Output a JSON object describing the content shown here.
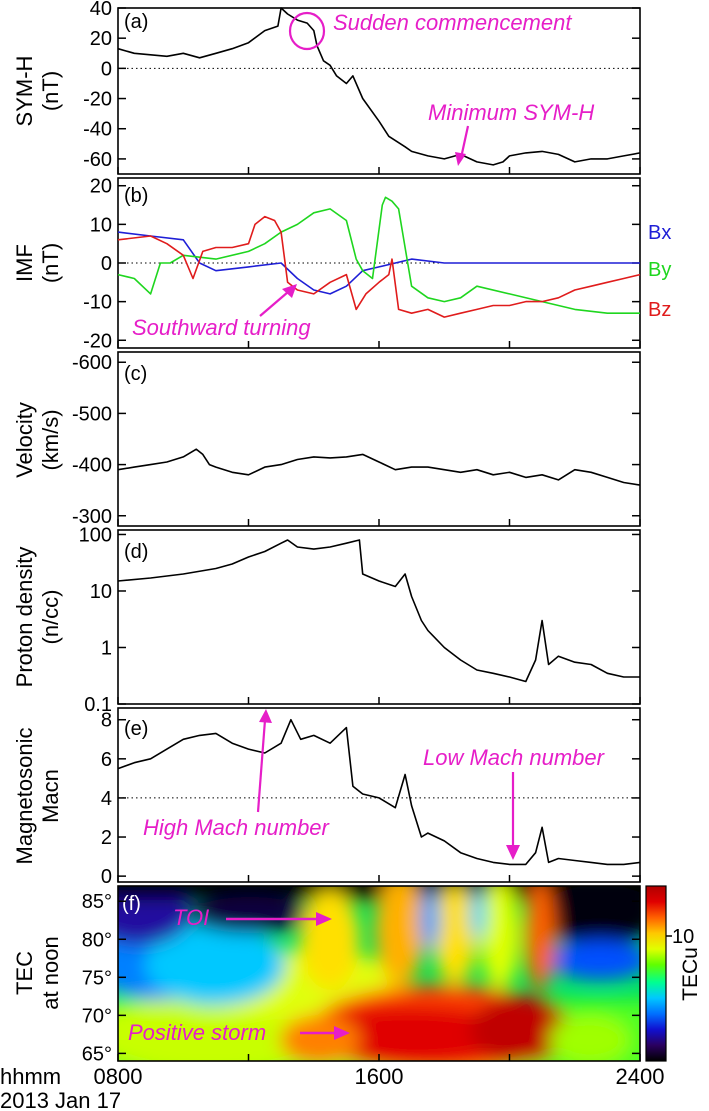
{
  "chart_data": [
    {
      "panel": "(a)",
      "type": "line",
      "ylabel": [
        "SYM-H",
        "(nT)"
      ],
      "ylim": [
        -70,
        40
      ],
      "yticks": [
        40,
        20,
        0,
        -20,
        -40,
        -60
      ],
      "xlim": [
        8,
        24
      ],
      "refline": 0,
      "series": [
        {
          "name": "SYM-H",
          "color": "#000000",
          "x": [
            8,
            8.5,
            9,
            9.5,
            10,
            10.5,
            11,
            11.5,
            12,
            12.5,
            12.9,
            13,
            13.2,
            13.5,
            13.8,
            14.0,
            14.1,
            14.3,
            14.5,
            14.7,
            15,
            15.2,
            15.5,
            16,
            16.3,
            16.8,
            17,
            17.5,
            18,
            18.5,
            19,
            19.5,
            19.8,
            20,
            20.5,
            21,
            21.5,
            22,
            22.5,
            23,
            23.5,
            24
          ],
          "y": [
            13,
            10,
            9,
            8,
            10,
            7,
            10,
            13,
            17,
            25,
            28,
            40,
            36,
            32,
            30,
            25,
            15,
            5,
            2,
            -5,
            -10,
            -5,
            -20,
            -35,
            -45,
            -52,
            -55,
            -58,
            -60,
            -57,
            -62,
            -64,
            -62,
            -58,
            -56,
            -55,
            -57,
            -62,
            -60,
            -60,
            -58,
            -56
          ]
        }
      ],
      "annotations": [
        {
          "text": "Sudden commencement"
        },
        {
          "text": "Minimum SYM-H"
        }
      ]
    },
    {
      "panel": "(b)",
      "type": "line",
      "ylabel": [
        "IMF",
        "(nT)"
      ],
      "ylim": [
        -22,
        22
      ],
      "yticks": [
        20,
        10,
        0,
        -10,
        -20
      ],
      "xlim": [
        8,
        24
      ],
      "refline": 0,
      "series": [
        {
          "name": "Bx",
          "color": "#1f1fd6",
          "x": [
            8,
            9,
            10,
            10.5,
            11,
            12,
            13,
            13.5,
            14,
            14.5,
            15,
            15.5,
            16,
            17,
            18,
            19,
            20,
            21,
            22,
            23,
            24
          ],
          "y": [
            8,
            7,
            6,
            0,
            -2,
            -1,
            0,
            -4,
            -7,
            -8,
            -6,
            -2,
            -1,
            1,
            0,
            0,
            0,
            0,
            0,
            0,
            0
          ]
        },
        {
          "name": "By",
          "color": "#1fd61f",
          "x": [
            8,
            8.5,
            9,
            9.3,
            9.6,
            10,
            11,
            12,
            12.5,
            13,
            13.5,
            14,
            14.5,
            15,
            15.3,
            15.5,
            15.8,
            16.1,
            16.2,
            16.4,
            16.6,
            17,
            17.5,
            18,
            18.5,
            19,
            20,
            21,
            22,
            23,
            24
          ],
          "y": [
            -3,
            -4,
            -8,
            0,
            0,
            2,
            1,
            3,
            5,
            8,
            10,
            13,
            14,
            11,
            1,
            -2,
            -4,
            15,
            17,
            16,
            14,
            -6,
            -9,
            -10,
            -9,
            -6,
            -8,
            -10,
            -12,
            -13,
            -13
          ]
        },
        {
          "name": "Bz",
          "color": "#e01c1c",
          "x": [
            8,
            9,
            9.5,
            10,
            10.3,
            10.6,
            11,
            11.5,
            12,
            12.2,
            12.5,
            12.8,
            13,
            13.2,
            13.5,
            14,
            14.5,
            15,
            15.3,
            15.6,
            16,
            16.3,
            16.4,
            16.6,
            17,
            17.5,
            18,
            18.5,
            19,
            19.5,
            20,
            20.5,
            21,
            21.5,
            22,
            22.5,
            23,
            23.5,
            24
          ],
          "y": [
            6,
            7,
            5,
            2,
            -4,
            3,
            4,
            4,
            5,
            10,
            12,
            11,
            8,
            -5,
            -7,
            -8,
            -5,
            -3,
            -12,
            -8,
            -5,
            -3,
            1,
            -12,
            -13,
            -12,
            -14,
            -13,
            -12,
            -11,
            -11,
            -10,
            -10,
            -9,
            -7,
            -6,
            -5,
            -4,
            -3
          ]
        }
      ],
      "legend": [
        "Bx",
        "By",
        "Bz"
      ],
      "annotations": [
        {
          "text": "Southward turning"
        }
      ]
    },
    {
      "panel": "(c)",
      "type": "line",
      "ylabel": [
        "Velocity",
        "(km/s)"
      ],
      "ylim": [
        -620,
        -280
      ],
      "yticks": [
        -600,
        -500,
        -400,
        -300
      ],
      "yinverted": true,
      "xlim": [
        8,
        24
      ],
      "series": [
        {
          "name": "Velocity",
          "color": "#000000",
          "x": [
            8,
            8.5,
            9,
            9.5,
            10,
            10.4,
            10.6,
            10.8,
            11,
            11.5,
            12,
            12.5,
            13,
            13.5,
            14,
            14.5,
            15,
            15.5,
            16,
            16.5,
            17,
            17.5,
            18,
            18.5,
            19,
            19.5,
            20,
            20.5,
            21,
            21.5,
            22,
            22.5,
            23,
            23.5,
            24
          ],
          "y": [
            -390,
            -395,
            -400,
            -405,
            -415,
            -430,
            -420,
            -400,
            -395,
            -385,
            -380,
            -395,
            -400,
            -410,
            -415,
            -413,
            -415,
            -420,
            -405,
            -390,
            -395,
            -395,
            -390,
            -385,
            -390,
            -380,
            -385,
            -375,
            -380,
            -370,
            -390,
            -385,
            -375,
            -365,
            -360
          ]
        }
      ],
      "annotations": []
    },
    {
      "panel": "(d)",
      "type": "line",
      "ylabel": [
        "Proton density",
        "(n/cc)"
      ],
      "yscale": "log",
      "ylim": [
        0.1,
        120
      ],
      "yticks": [
        100,
        10,
        1,
        0.1
      ],
      "xlim": [
        8,
        24
      ],
      "series": [
        {
          "name": "Proton density",
          "color": "#000000",
          "x": [
            8,
            9,
            10,
            11,
            11.5,
            12,
            12.5,
            13,
            13.2,
            13.5,
            14,
            14.5,
            15,
            15.4,
            15.5,
            16,
            16.5,
            16.8,
            17,
            17.3,
            17.5,
            18,
            18.5,
            19,
            19.5,
            20,
            20.5,
            20.8,
            21,
            21.2,
            21.5,
            22,
            22.5,
            23,
            23.5,
            24
          ],
          "y": [
            15,
            17,
            20,
            25,
            30,
            40,
            50,
            70,
            80,
            60,
            55,
            60,
            70,
            80,
            20,
            15,
            12,
            20,
            8,
            3,
            2,
            1,
            0.6,
            0.4,
            0.35,
            0.3,
            0.25,
            0.6,
            3,
            0.5,
            0.7,
            0.55,
            0.5,
            0.35,
            0.3,
            0.3
          ]
        }
      ],
      "annotations": []
    },
    {
      "panel": "(e)",
      "type": "line",
      "ylabel": [
        "Magnetosonic",
        "Macn"
      ],
      "ylim": [
        -0.3,
        8.6
      ],
      "yticks": [
        8,
        6,
        4,
        2,
        0
      ],
      "xlim": [
        8,
        24
      ],
      "refline": 4,
      "series": [
        {
          "name": "Magnetosonic Mach number",
          "color": "#000000",
          "x": [
            8,
            8.5,
            9,
            9.5,
            10,
            10.5,
            11,
            11.5,
            12,
            12.5,
            13,
            13.3,
            13.6,
            14,
            14.5,
            15,
            15.2,
            15.5,
            16,
            16.5,
            16.8,
            17,
            17.3,
            17.5,
            18,
            18.5,
            19,
            19.5,
            20,
            20.5,
            20.8,
            21,
            21.2,
            21.5,
            22,
            22.5,
            23,
            23.5,
            24
          ],
          "y": [
            5.5,
            5.8,
            6.0,
            6.5,
            7.0,
            7.2,
            7.3,
            6.8,
            6.5,
            6.3,
            6.8,
            8.0,
            7.0,
            7.2,
            6.8,
            7.6,
            4.6,
            4.2,
            4.0,
            3.5,
            5.2,
            3.6,
            2.0,
            2.2,
            1.8,
            1.2,
            0.9,
            0.7,
            0.6,
            0.6,
            1.2,
            2.5,
            0.7,
            0.9,
            0.8,
            0.7,
            0.6,
            0.6,
            0.7
          ]
        }
      ],
      "annotations": [
        {
          "text": "High Mach number"
        },
        {
          "text": "Low Mach number"
        }
      ]
    },
    {
      "panel": "(f)",
      "type": "heatmap",
      "ylabel": [
        "TEC",
        "at noon"
      ],
      "ylim": [
        64,
        87
      ],
      "yticks": [
        "85°",
        "80°",
        "75°",
        "70°",
        "65°"
      ],
      "ytick_values": [
        85,
        80,
        75,
        70,
        65
      ],
      "xlim": [
        8,
        24
      ],
      "xticks": [
        "0800",
        "1600",
        "2400"
      ],
      "xtick_values": [
        8,
        16,
        24
      ],
      "colorbar": {
        "label": "TECu",
        "tick": "10",
        "tick_value": 10,
        "range": [
          0,
          14
        ],
        "colors": [
          "#000000",
          "#2a0060",
          "#1010d0",
          "#0070ff",
          "#00c8ff",
          "#00ff90",
          "#60ff00",
          "#e0ff00",
          "#ffc800",
          "#ff6000",
          "#e00000",
          "#b00000"
        ]
      },
      "annotations": [
        {
          "text": "TOI"
        },
        {
          "text": "Positive storm"
        }
      ]
    }
  ],
  "xaxis_caption": "hhmm",
  "date_caption": "2013 Jan 17",
  "colors": {
    "annotation": "#e61ec8",
    "axis": "#000000"
  }
}
